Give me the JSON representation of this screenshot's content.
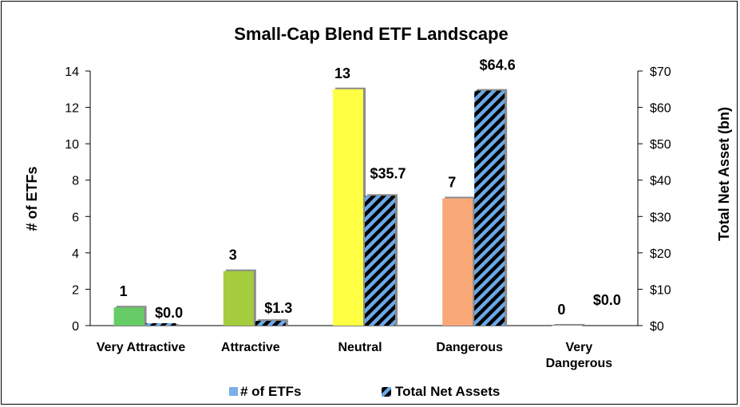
{
  "chart_data": {
    "type": "bar",
    "title": "Small-Cap Blend ETF Landscape",
    "categories": [
      [
        "Very Attractive"
      ],
      [
        "Attractive"
      ],
      [
        "Neutral"
      ],
      [
        "Dangerous"
      ],
      [
        "Very",
        "Dangerous"
      ]
    ],
    "series": [
      {
        "name": "# of ETFs",
        "axis": "left",
        "values": [
          1,
          3,
          13,
          7,
          0
        ],
        "labels": [
          "1",
          "3",
          "13",
          "7",
          "0"
        ],
        "colors": [
          "#66cc66",
          "#a4cc3c",
          "#ffff44",
          "#f9a878",
          "#ffffff"
        ],
        "legend_color": "#7ab0e8"
      },
      {
        "name": "Total Net Assets",
        "axis": "right",
        "values": [
          0.0,
          1.3,
          35.7,
          64.6,
          0.0
        ],
        "labels": [
          "$0.0",
          "$1.3",
          "$35.7",
          "$64.6",
          "$0.0"
        ],
        "pattern": "diagonal-stripes",
        "stripe_colors": [
          "#000000",
          "#6aa8e8"
        ]
      }
    ],
    "y_left": {
      "label": "# of ETFs",
      "range": [
        0,
        14
      ],
      "ticks": [
        "0",
        "2",
        "4",
        "6",
        "8",
        "10",
        "12",
        "14"
      ]
    },
    "y_right": {
      "label": "Total Net Asset (bn)",
      "range": [
        0,
        70
      ],
      "ticks": [
        "$0",
        "$10",
        "$20",
        "$30",
        "$40",
        "$50",
        "$60",
        "$70"
      ]
    },
    "grid": false,
    "legend_position": "bottom"
  }
}
